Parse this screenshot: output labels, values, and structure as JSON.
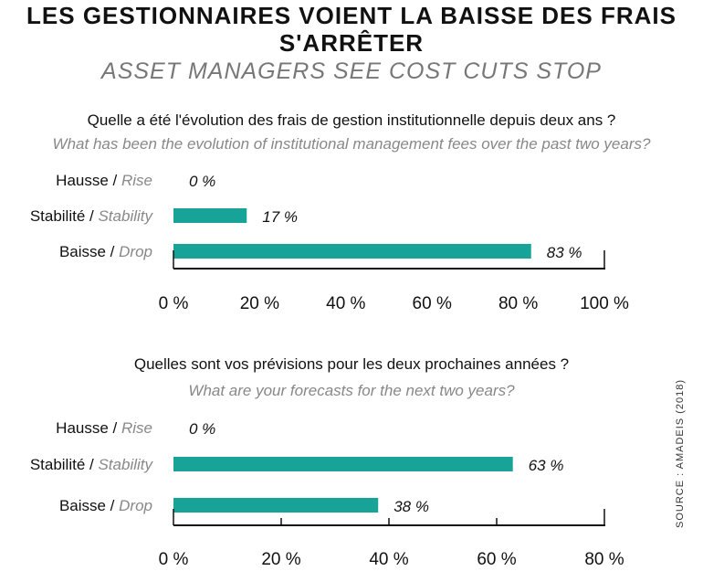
{
  "title_fr": "LES GESTIONNAIRES VOIENT LA BAISSE DES FRAIS S'ARRÊTER",
  "title_en": "ASSET MANAGERS SEE COST CUTS STOP",
  "source": "SOURCE : AMADEIS (2018)",
  "colors": {
    "bar": "#17a398",
    "axis": "#111111"
  },
  "chart_data": [
    {
      "type": "bar",
      "orientation": "horizontal",
      "question_fr": "Quelle a été l'évolution des frais de gestion institutionnelle depuis deux ans ?",
      "question_en": "What has been the evolution of institutional management fees over the past two years?",
      "categories": [
        {
          "fr": "Hausse",
          "en": "Rise"
        },
        {
          "fr": "Stabilité",
          "en": "Stability"
        },
        {
          "fr": "Baisse",
          "en": "Drop"
        }
      ],
      "values": [
        0,
        17,
        83
      ],
      "value_labels": [
        "0 %",
        "17 %",
        "83 %"
      ],
      "xlim": [
        0,
        100
      ],
      "ticks": [
        "0 %",
        "20 %",
        "40 %",
        "60 %",
        "80 %",
        "100 %"
      ],
      "tick_values": [
        0,
        20,
        40,
        60,
        80,
        100
      ]
    },
    {
      "type": "bar",
      "orientation": "horizontal",
      "question_fr": "Quelles sont vos prévisions pour les deux prochaines années ?",
      "question_en": "What are your forecasts for the next two years?",
      "categories": [
        {
          "fr": "Hausse",
          "en": "Rise"
        },
        {
          "fr": "Stabilité",
          "en": "Stability"
        },
        {
          "fr": "Baisse",
          "en": "Drop"
        }
      ],
      "values": [
        0,
        63,
        38
      ],
      "value_labels": [
        "0 %",
        "63 %",
        "38 %"
      ],
      "xlim": [
        0,
        80
      ],
      "ticks": [
        "0 %",
        "20 %",
        "40 %",
        "60 %",
        "80 %"
      ],
      "tick_values": [
        0,
        20,
        40,
        60,
        80
      ]
    }
  ]
}
